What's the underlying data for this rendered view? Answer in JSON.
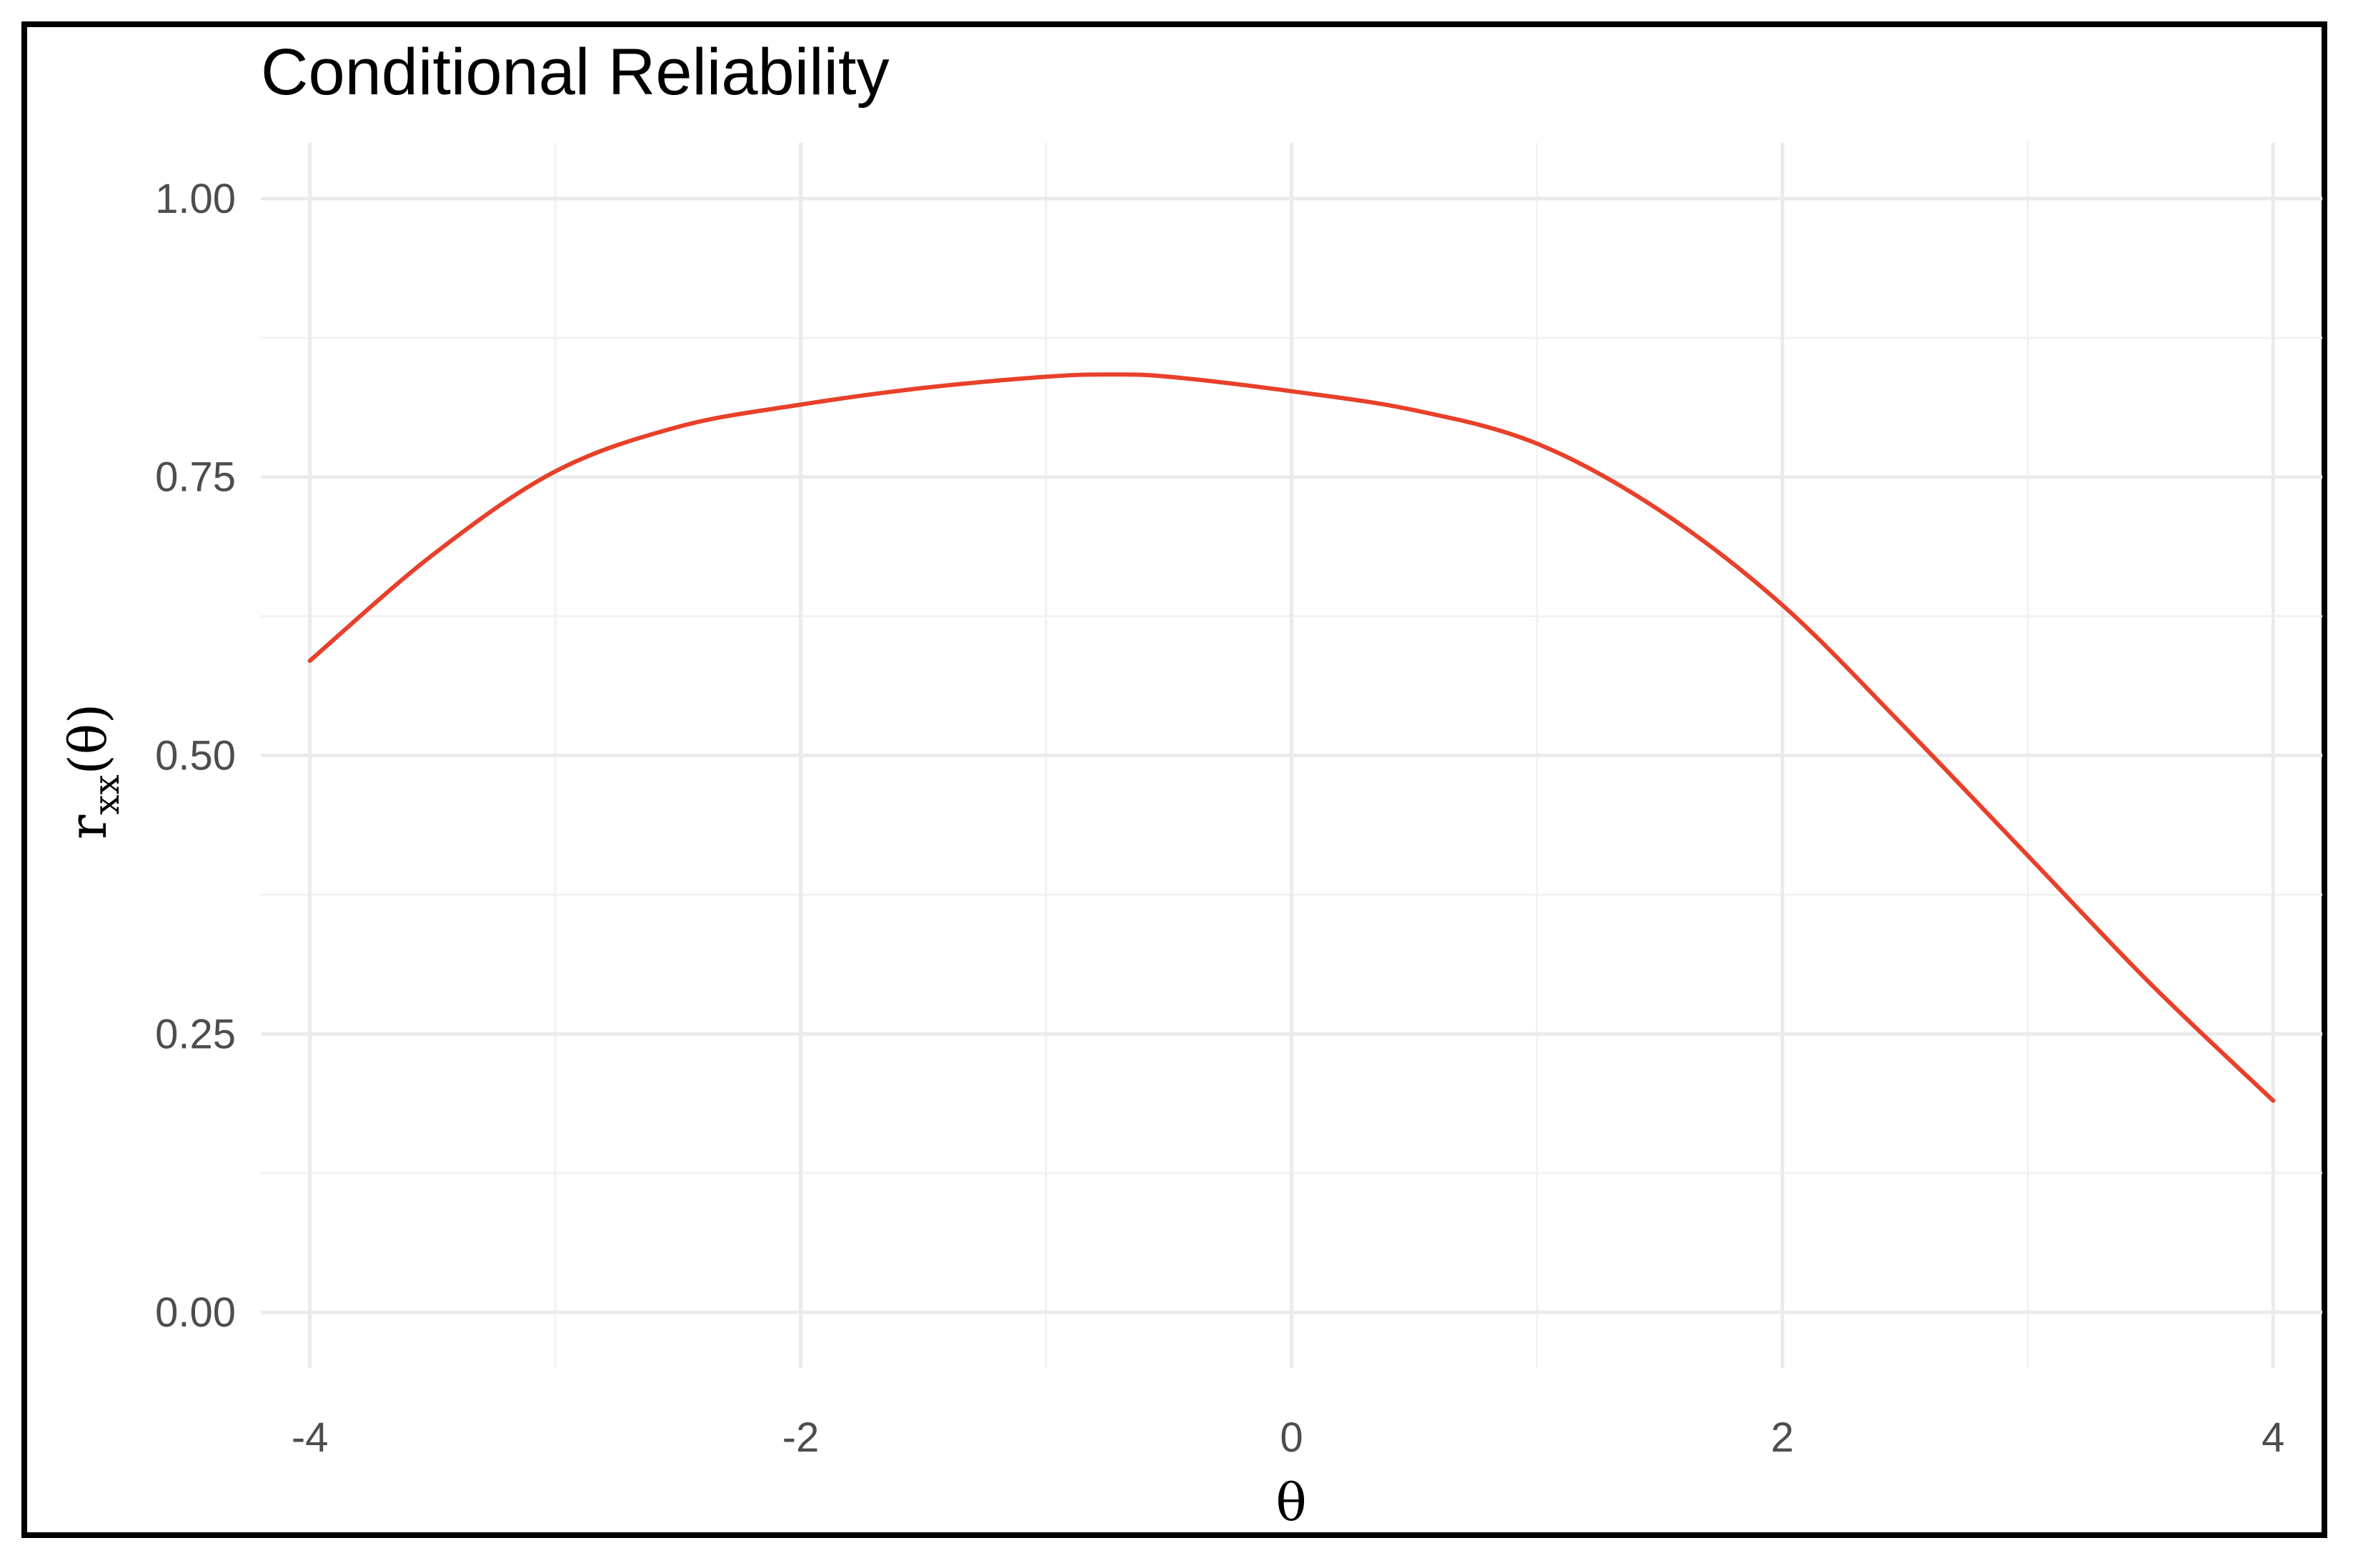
{
  "chart_data": {
    "type": "line",
    "title": "Conditional Reliability",
    "xlabel": "θ",
    "ylabel": {
      "base": "r",
      "sub": "xx",
      "arg": "(θ)"
    },
    "xlim": [
      -4.2,
      4.2
    ],
    "ylim": [
      -0.05,
      1.05
    ],
    "x_ticks": [
      -4,
      -2,
      0,
      2,
      4
    ],
    "x_tick_labels": [
      "-4",
      "-2",
      "0",
      "2",
      "4"
    ],
    "y_ticks": [
      0.0,
      0.25,
      0.5,
      0.75,
      1.0
    ],
    "y_tick_labels": [
      "0.00",
      "0.25",
      "0.50",
      "0.75",
      "1.00"
    ],
    "grid": true,
    "colors": {
      "line": "#e8402a",
      "grid_major": "#ebebeb",
      "grid_minor": "#f2f2f2"
    },
    "series": [
      {
        "x": [
          -4.0,
          -3.5,
          -3.0,
          -2.5,
          -2.0,
          -1.5,
          -1.0,
          -0.75,
          -0.5,
          0.0,
          0.5,
          1.0,
          1.5,
          2.0,
          2.5,
          3.0,
          3.5,
          4.0
        ],
        "y": [
          0.585,
          0.68,
          0.755,
          0.795,
          0.815,
          0.83,
          0.84,
          0.842,
          0.84,
          0.827,
          0.81,
          0.78,
          0.72,
          0.635,
          0.525,
          0.41,
          0.295,
          0.19
        ]
      }
    ]
  }
}
